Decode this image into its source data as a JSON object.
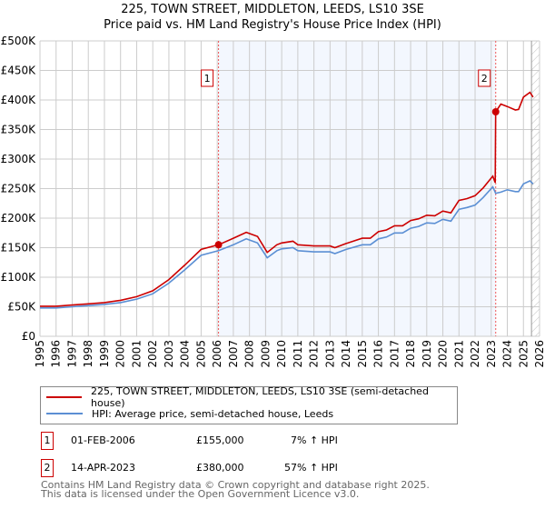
{
  "title": "225, TOWN STREET, MIDDLETON, LEEDS, LS10 3SE",
  "subtitle": "Price paid vs. HM Land Registry's House Price Index (HPI)",
  "chart_data": {
    "type": "line",
    "title": "225, TOWN STREET, MIDDLETON, LEEDS, LS10 3SE",
    "subtitle": "Price paid vs. HM Land Registry's House Price Index (HPI)",
    "xlim": [
      1995,
      2026
    ],
    "ylim": [
      0,
      500000
    ],
    "x_ticks": [
      "1995",
      "1996",
      "1997",
      "1998",
      "1999",
      "2000",
      "2001",
      "2002",
      "2003",
      "2004",
      "2005",
      "2006",
      "2007",
      "2008",
      "2009",
      "2010",
      "2011",
      "2012",
      "2013",
      "2014",
      "2015",
      "2016",
      "2017",
      "2018",
      "2019",
      "2020",
      "2021",
      "2022",
      "2023",
      "2024",
      "2025",
      "2026"
    ],
    "y_ticks": [
      {
        "v": 0,
        "label": "£0"
      },
      {
        "v": 50000,
        "label": "£50K"
      },
      {
        "v": 100000,
        "label": "£100K"
      },
      {
        "v": 150000,
        "label": "£150K"
      },
      {
        "v": 200000,
        "label": "£200K"
      },
      {
        "v": 250000,
        "label": "£250K"
      },
      {
        "v": 300000,
        "label": "£300K"
      },
      {
        "v": 350000,
        "label": "£350K"
      },
      {
        "v": 400000,
        "label": "£400K"
      },
      {
        "v": 450000,
        "label": "£450K"
      },
      {
        "v": 500000,
        "label": "£500K"
      }
    ],
    "grid": true,
    "shaded_range": [
      2006.08,
      2023.28
    ],
    "future_hatch_from": 2025.5,
    "series": [
      {
        "name": "225, TOWN STREET, MIDDLETON, LEEDS, LS10 3SE (semi-detached house)",
        "color": "#cc0000",
        "x": [
          1995,
          1996,
          1997,
          1998,
          1999,
          2000,
          2001,
          2002,
          2003,
          2004,
          2005,
          2006.08,
          2007,
          2007.8,
          2008.5,
          2009.1,
          2009.7,
          2010,
          2010.7,
          2011,
          2012,
          2013,
          2013.3,
          2014,
          2015,
          2015.5,
          2016,
          2016.5,
          2017,
          2017.5,
          2018,
          2018.5,
          2019,
          2019.5,
          2020,
          2020.5,
          2021,
          2021.5,
          2022,
          2022.5,
          2023.1,
          2023.25,
          2023.28,
          2023.6,
          2024,
          2024.5,
          2024.7,
          2025,
          2025.4,
          2025.6
        ],
        "y": [
          51000,
          51000,
          53000,
          55000,
          57000,
          61000,
          67000,
          77000,
          96000,
          121000,
          147000,
          155000,
          166000,
          176000,
          169000,
          142000,
          155000,
          158000,
          161000,
          155000,
          153000,
          153000,
          150000,
          157000,
          166000,
          166000,
          177000,
          180000,
          187000,
          187000,
          196000,
          199000,
          205000,
          204000,
          212000,
          209000,
          230000,
          233000,
          238000,
          251000,
          271000,
          260000,
          380000,
          393000,
          389000,
          383000,
          384000,
          405000,
          413000,
          405000
        ]
      },
      {
        "name": "HPI: Average price, semi-detached house, Leeds",
        "color": "#5b8fd4",
        "x": [
          1995,
          1996,
          1997,
          1998,
          1999,
          2000,
          2001,
          2002,
          2003,
          2004,
          2005,
          2006.08,
          2007,
          2007.8,
          2008.5,
          2009.1,
          2009.7,
          2010,
          2010.7,
          2011,
          2012,
          2013,
          2013.3,
          2014,
          2015,
          2015.5,
          2016,
          2016.5,
          2017,
          2017.5,
          2018,
          2018.5,
          2019,
          2019.5,
          2020,
          2020.5,
          2021,
          2021.5,
          2022,
          2022.5,
          2023.1,
          2023.28,
          2023.6,
          2024,
          2024.5,
          2024.7,
          2025,
          2025.4,
          2025.6
        ],
        "y": [
          48000,
          48000,
          50000,
          52000,
          54000,
          57000,
          63000,
          72000,
          90000,
          113000,
          137000,
          145000,
          155000,
          165000,
          158000,
          133000,
          145000,
          148000,
          150000,
          145000,
          143000,
          143000,
          140000,
          147000,
          155000,
          155000,
          165000,
          168000,
          175000,
          175000,
          183000,
          186000,
          192000,
          191000,
          198000,
          195000,
          215000,
          218000,
          222000,
          235000,
          253000,
          242000,
          244000,
          248000,
          245000,
          245000,
          258000,
          263000,
          258000
        ]
      }
    ],
    "annotations": [
      {
        "label": "1",
        "x": 2006.08,
        "y": 155000
      },
      {
        "label": "2",
        "x": 2023.28,
        "y": 380000
      }
    ]
  },
  "legend": {
    "items": [
      {
        "label": "225, TOWN STREET, MIDDLETON, LEEDS, LS10 3SE (semi-detached house)",
        "color": "#cc0000"
      },
      {
        "label": "HPI: Average price, semi-detached house, Leeds",
        "color": "#5b8fd4"
      }
    ]
  },
  "sales": [
    {
      "num": "1",
      "date": "01-FEB-2006",
      "price": "£155,000",
      "hpi": "7% ↑ HPI"
    },
    {
      "num": "2",
      "date": "14-APR-2023",
      "price": "£380,000",
      "hpi": "57% ↑ HPI"
    }
  ],
  "footer": {
    "line1": "Contains HM Land Registry data © Crown copyright and database right 2025.",
    "line2": "This data is licensed under the Open Government Licence v3.0."
  }
}
